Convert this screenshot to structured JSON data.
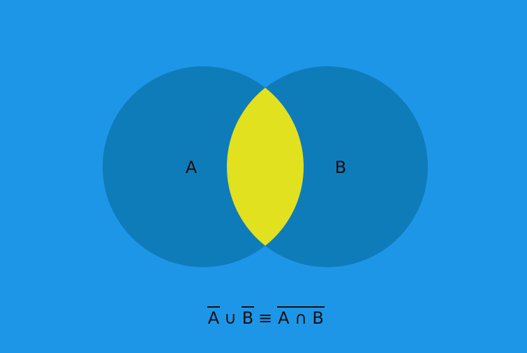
{
  "diagram": {
    "colors": {
      "background": "#1e96e8",
      "circle": "#0f7cba",
      "intersection": "#e1e11f",
      "text": "#111111"
    },
    "sets": [
      {
        "label": "A"
      },
      {
        "label": "B"
      }
    ],
    "formula": {
      "left_operand": "A",
      "union_symbol": "∪",
      "right_operand": "B",
      "equiv_symbol": "≡",
      "rhs_expression": "A ∩ B"
    }
  }
}
